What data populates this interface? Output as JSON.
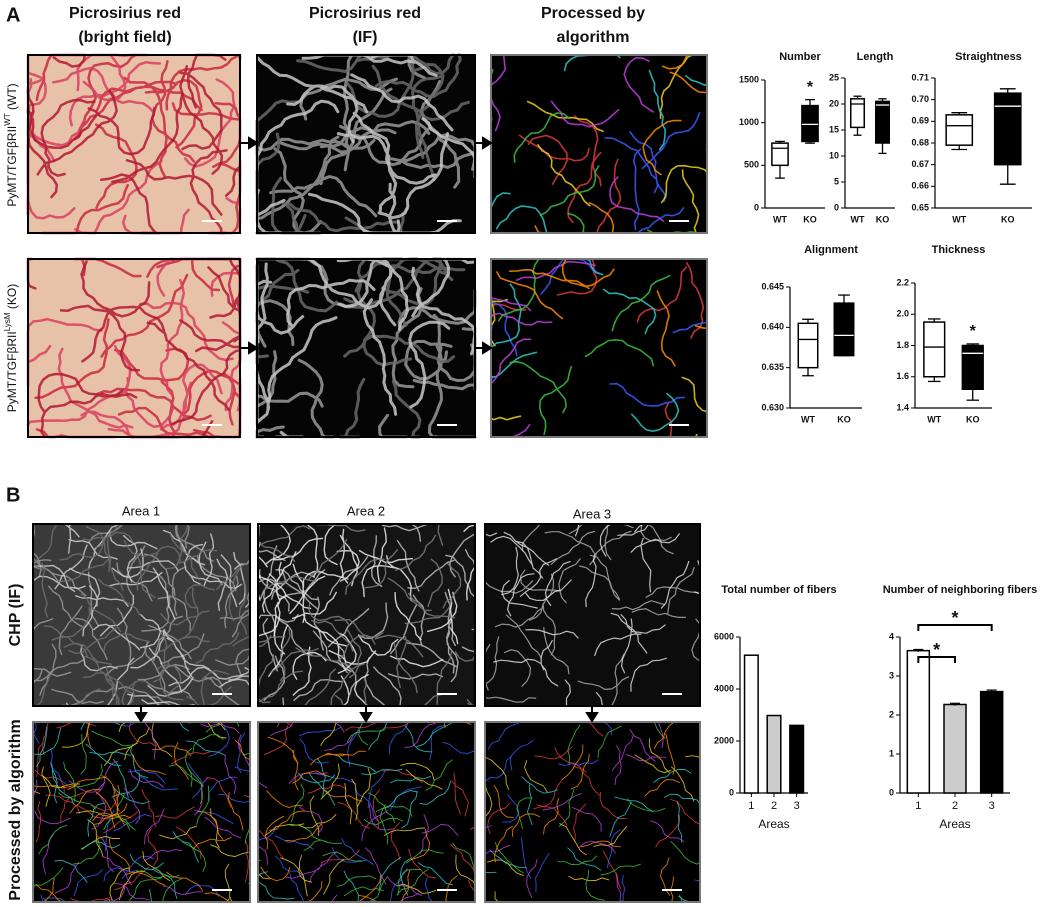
{
  "panel_a": {
    "label": "A",
    "column_headers": [
      [
        "Picrosirius red",
        "(bright field)"
      ],
      [
        "Picrosirius red",
        "(IF)"
      ],
      [
        "Processed by",
        "algorithm"
      ]
    ],
    "row_labels": [
      [
        "PyMT/TGFβRII",
        "WT",
        " (WT)"
      ],
      [
        "PyMT/TGFβRII",
        "LysM",
        " (KO)"
      ]
    ],
    "charts": [
      {
        "type": "box",
        "title": "Number",
        "categories": [
          "WT",
          "KO"
        ],
        "colors": [
          "#ffffff",
          "#000000"
        ],
        "boxes": [
          {
            "min": 350,
            "q1": 500,
            "median": 700,
            "q3": 760,
            "max": 780
          },
          {
            "min": 760,
            "q1": 780,
            "median": 980,
            "q3": 1200,
            "max": 1270
          }
        ],
        "annotations": [
          null,
          "*"
        ],
        "ylim": [
          0,
          1500
        ],
        "yticks": [
          0,
          500,
          1000,
          1500
        ]
      },
      {
        "type": "box",
        "title": "Length",
        "categories": [
          "WT",
          "KO"
        ],
        "colors": [
          "#ffffff",
          "#000000"
        ],
        "boxes": [
          {
            "min": 14,
            "q1": 15.5,
            "median": 20,
            "q3": 21,
            "max": 21.5
          },
          {
            "min": 10.5,
            "q1": 12.5,
            "median": 19.8,
            "q3": 20.5,
            "max": 21
          }
        ],
        "annotations": [
          null,
          null
        ],
        "ylim": [
          0,
          25
        ],
        "yticks": [
          0,
          5,
          10,
          15,
          20,
          25
        ]
      },
      {
        "type": "box",
        "title": "Straightness",
        "categories": [
          "WT",
          "KO"
        ],
        "colors": [
          "#ffffff",
          "#000000"
        ],
        "boxes": [
          {
            "min": 0.677,
            "q1": 0.679,
            "median": 0.688,
            "q3": 0.693,
            "max": 0.694
          },
          {
            "min": 0.661,
            "q1": 0.67,
            "median": 0.697,
            "q3": 0.703,
            "max": 0.705
          }
        ],
        "annotations": [
          null,
          null
        ],
        "ylim": [
          0.65,
          0.71
        ],
        "yticks": [
          0.65,
          0.66,
          0.67,
          0.68,
          0.69,
          {
            "value": 0.7,
            "label": "0.70"
          },
          0.71
        ]
      },
      {
        "type": "box",
        "title": "Alignment",
        "categories": [
          "WT",
          "KO"
        ],
        "colors": [
          "#ffffff",
          "#000000"
        ],
        "boxes": [
          {
            "min": 0.634,
            "q1": 0.635,
            "median": 0.6385,
            "q3": 0.6405,
            "max": 0.641
          },
          {
            "min": 0.6365,
            "q1": 0.6365,
            "median": 0.639,
            "q3": 0.643,
            "max": 0.644
          }
        ],
        "annotations": [
          null,
          null
        ],
        "ylim": [
          0.63,
          0.645
        ],
        "yticks": [
          {
            "value": 0.63,
            "label": "0.630"
          },
          0.635,
          {
            "value": 0.64,
            "label": "0.640"
          },
          0.645
        ]
      },
      {
        "type": "box",
        "title": "Thickness",
        "categories": [
          "WT",
          "KO"
        ],
        "colors": [
          "#ffffff",
          "#000000"
        ],
        "boxes": [
          {
            "min": 1.57,
            "q1": 1.6,
            "median": 1.79,
            "q3": 1.95,
            "max": 1.97
          },
          {
            "min": 1.45,
            "q1": 1.52,
            "median": 1.75,
            "q3": 1.8,
            "max": 1.81
          }
        ],
        "annotations": [
          null,
          "*"
        ],
        "ylim": [
          1.4,
          2.2
        ],
        "yticks": [
          1.4,
          1.6,
          1.8,
          {
            "value": 2.0,
            "label": "2.0"
          },
          2.2
        ]
      }
    ]
  },
  "panel_b": {
    "label": "B",
    "column_headers": [
      "Area 1",
      "Area 2",
      "Area 3"
    ],
    "row_labels": [
      "CHP (IF)",
      "Processed by algorithm"
    ],
    "charts": [
      {
        "type": "bar",
        "title": "Total number of fibers",
        "categories": [
          "1",
          "2",
          "3"
        ],
        "values": [
          5300,
          2980,
          2600
        ],
        "colors": [
          "#ffffff",
          "#cccccc",
          "#000000"
        ],
        "xlabel": "Areas",
        "ylim": [
          0,
          6000
        ],
        "yticks": [
          0,
          2000,
          4000,
          6000
        ]
      },
      {
        "type": "bar",
        "title": "Number of neighboring fibers",
        "categories": [
          "1",
          "2",
          "3"
        ],
        "values": [
          3.65,
          2.27,
          2.6
        ],
        "errors": [
          0.03,
          0.03,
          0.04
        ],
        "colors": [
          "#ffffff",
          "#cccccc",
          "#000000"
        ],
        "xlabel": "Areas",
        "ylim": [
          0,
          4
        ],
        "yticks": [
          0,
          1,
          2,
          3,
          4
        ],
        "significance": [
          {
            "from": 0,
            "to": 1,
            "label": "*"
          },
          {
            "from": 0,
            "to": 2,
            "label": "*"
          }
        ]
      }
    ]
  }
}
